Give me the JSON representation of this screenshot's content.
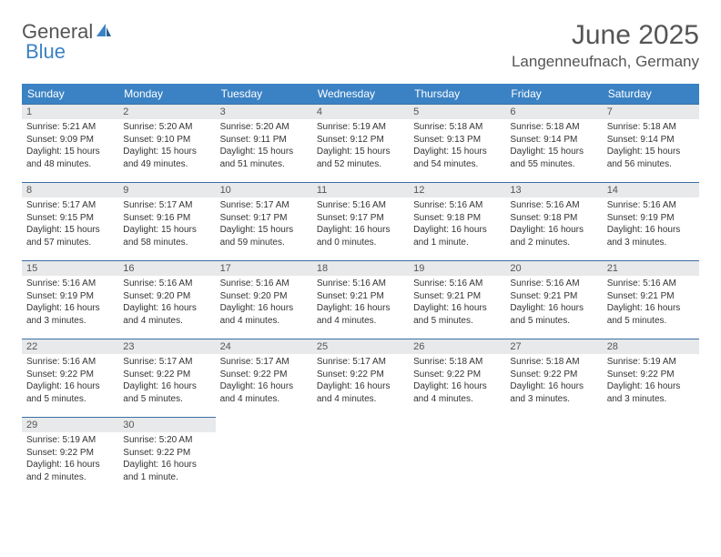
{
  "logo": {
    "word1": "General",
    "word2": "Blue"
  },
  "title": "June 2025",
  "location": "Langenneufnach, Germany",
  "colors": {
    "header_bg": "#3b82c4",
    "header_text": "#ffffff",
    "daynum_bg": "#e8e9ea",
    "border": "#3b6ea5",
    "text": "#333333",
    "title_text": "#555555"
  },
  "weekdays": [
    "Sunday",
    "Monday",
    "Tuesday",
    "Wednesday",
    "Thursday",
    "Friday",
    "Saturday"
  ],
  "weeks": [
    [
      {
        "n": "1",
        "sr": "Sunrise: 5:21 AM",
        "ss": "Sunset: 9:09 PM",
        "d1": "Daylight: 15 hours",
        "d2": "and 48 minutes."
      },
      {
        "n": "2",
        "sr": "Sunrise: 5:20 AM",
        "ss": "Sunset: 9:10 PM",
        "d1": "Daylight: 15 hours",
        "d2": "and 49 minutes."
      },
      {
        "n": "3",
        "sr": "Sunrise: 5:20 AM",
        "ss": "Sunset: 9:11 PM",
        "d1": "Daylight: 15 hours",
        "d2": "and 51 minutes."
      },
      {
        "n": "4",
        "sr": "Sunrise: 5:19 AM",
        "ss": "Sunset: 9:12 PM",
        "d1": "Daylight: 15 hours",
        "d2": "and 52 minutes."
      },
      {
        "n": "5",
        "sr": "Sunrise: 5:18 AM",
        "ss": "Sunset: 9:13 PM",
        "d1": "Daylight: 15 hours",
        "d2": "and 54 minutes."
      },
      {
        "n": "6",
        "sr": "Sunrise: 5:18 AM",
        "ss": "Sunset: 9:14 PM",
        "d1": "Daylight: 15 hours",
        "d2": "and 55 minutes."
      },
      {
        "n": "7",
        "sr": "Sunrise: 5:18 AM",
        "ss": "Sunset: 9:14 PM",
        "d1": "Daylight: 15 hours",
        "d2": "and 56 minutes."
      }
    ],
    [
      {
        "n": "8",
        "sr": "Sunrise: 5:17 AM",
        "ss": "Sunset: 9:15 PM",
        "d1": "Daylight: 15 hours",
        "d2": "and 57 minutes."
      },
      {
        "n": "9",
        "sr": "Sunrise: 5:17 AM",
        "ss": "Sunset: 9:16 PM",
        "d1": "Daylight: 15 hours",
        "d2": "and 58 minutes."
      },
      {
        "n": "10",
        "sr": "Sunrise: 5:17 AM",
        "ss": "Sunset: 9:17 PM",
        "d1": "Daylight: 15 hours",
        "d2": "and 59 minutes."
      },
      {
        "n": "11",
        "sr": "Sunrise: 5:16 AM",
        "ss": "Sunset: 9:17 PM",
        "d1": "Daylight: 16 hours",
        "d2": "and 0 minutes."
      },
      {
        "n": "12",
        "sr": "Sunrise: 5:16 AM",
        "ss": "Sunset: 9:18 PM",
        "d1": "Daylight: 16 hours",
        "d2": "and 1 minute."
      },
      {
        "n": "13",
        "sr": "Sunrise: 5:16 AM",
        "ss": "Sunset: 9:18 PM",
        "d1": "Daylight: 16 hours",
        "d2": "and 2 minutes."
      },
      {
        "n": "14",
        "sr": "Sunrise: 5:16 AM",
        "ss": "Sunset: 9:19 PM",
        "d1": "Daylight: 16 hours",
        "d2": "and 3 minutes."
      }
    ],
    [
      {
        "n": "15",
        "sr": "Sunrise: 5:16 AM",
        "ss": "Sunset: 9:19 PM",
        "d1": "Daylight: 16 hours",
        "d2": "and 3 minutes."
      },
      {
        "n": "16",
        "sr": "Sunrise: 5:16 AM",
        "ss": "Sunset: 9:20 PM",
        "d1": "Daylight: 16 hours",
        "d2": "and 4 minutes."
      },
      {
        "n": "17",
        "sr": "Sunrise: 5:16 AM",
        "ss": "Sunset: 9:20 PM",
        "d1": "Daylight: 16 hours",
        "d2": "and 4 minutes."
      },
      {
        "n": "18",
        "sr": "Sunrise: 5:16 AM",
        "ss": "Sunset: 9:21 PM",
        "d1": "Daylight: 16 hours",
        "d2": "and 4 minutes."
      },
      {
        "n": "19",
        "sr": "Sunrise: 5:16 AM",
        "ss": "Sunset: 9:21 PM",
        "d1": "Daylight: 16 hours",
        "d2": "and 5 minutes."
      },
      {
        "n": "20",
        "sr": "Sunrise: 5:16 AM",
        "ss": "Sunset: 9:21 PM",
        "d1": "Daylight: 16 hours",
        "d2": "and 5 minutes."
      },
      {
        "n": "21",
        "sr": "Sunrise: 5:16 AM",
        "ss": "Sunset: 9:21 PM",
        "d1": "Daylight: 16 hours",
        "d2": "and 5 minutes."
      }
    ],
    [
      {
        "n": "22",
        "sr": "Sunrise: 5:16 AM",
        "ss": "Sunset: 9:22 PM",
        "d1": "Daylight: 16 hours",
        "d2": "and 5 minutes."
      },
      {
        "n": "23",
        "sr": "Sunrise: 5:17 AM",
        "ss": "Sunset: 9:22 PM",
        "d1": "Daylight: 16 hours",
        "d2": "and 5 minutes."
      },
      {
        "n": "24",
        "sr": "Sunrise: 5:17 AM",
        "ss": "Sunset: 9:22 PM",
        "d1": "Daylight: 16 hours",
        "d2": "and 4 minutes."
      },
      {
        "n": "25",
        "sr": "Sunrise: 5:17 AM",
        "ss": "Sunset: 9:22 PM",
        "d1": "Daylight: 16 hours",
        "d2": "and 4 minutes."
      },
      {
        "n": "26",
        "sr": "Sunrise: 5:18 AM",
        "ss": "Sunset: 9:22 PM",
        "d1": "Daylight: 16 hours",
        "d2": "and 4 minutes."
      },
      {
        "n": "27",
        "sr": "Sunrise: 5:18 AM",
        "ss": "Sunset: 9:22 PM",
        "d1": "Daylight: 16 hours",
        "d2": "and 3 minutes."
      },
      {
        "n": "28",
        "sr": "Sunrise: 5:19 AM",
        "ss": "Sunset: 9:22 PM",
        "d1": "Daylight: 16 hours",
        "d2": "and 3 minutes."
      }
    ],
    [
      {
        "n": "29",
        "sr": "Sunrise: 5:19 AM",
        "ss": "Sunset: 9:22 PM",
        "d1": "Daylight: 16 hours",
        "d2": "and 2 minutes."
      },
      {
        "n": "30",
        "sr": "Sunrise: 5:20 AM",
        "ss": "Sunset: 9:22 PM",
        "d1": "Daylight: 16 hours",
        "d2": "and 1 minute."
      },
      null,
      null,
      null,
      null,
      null
    ]
  ]
}
